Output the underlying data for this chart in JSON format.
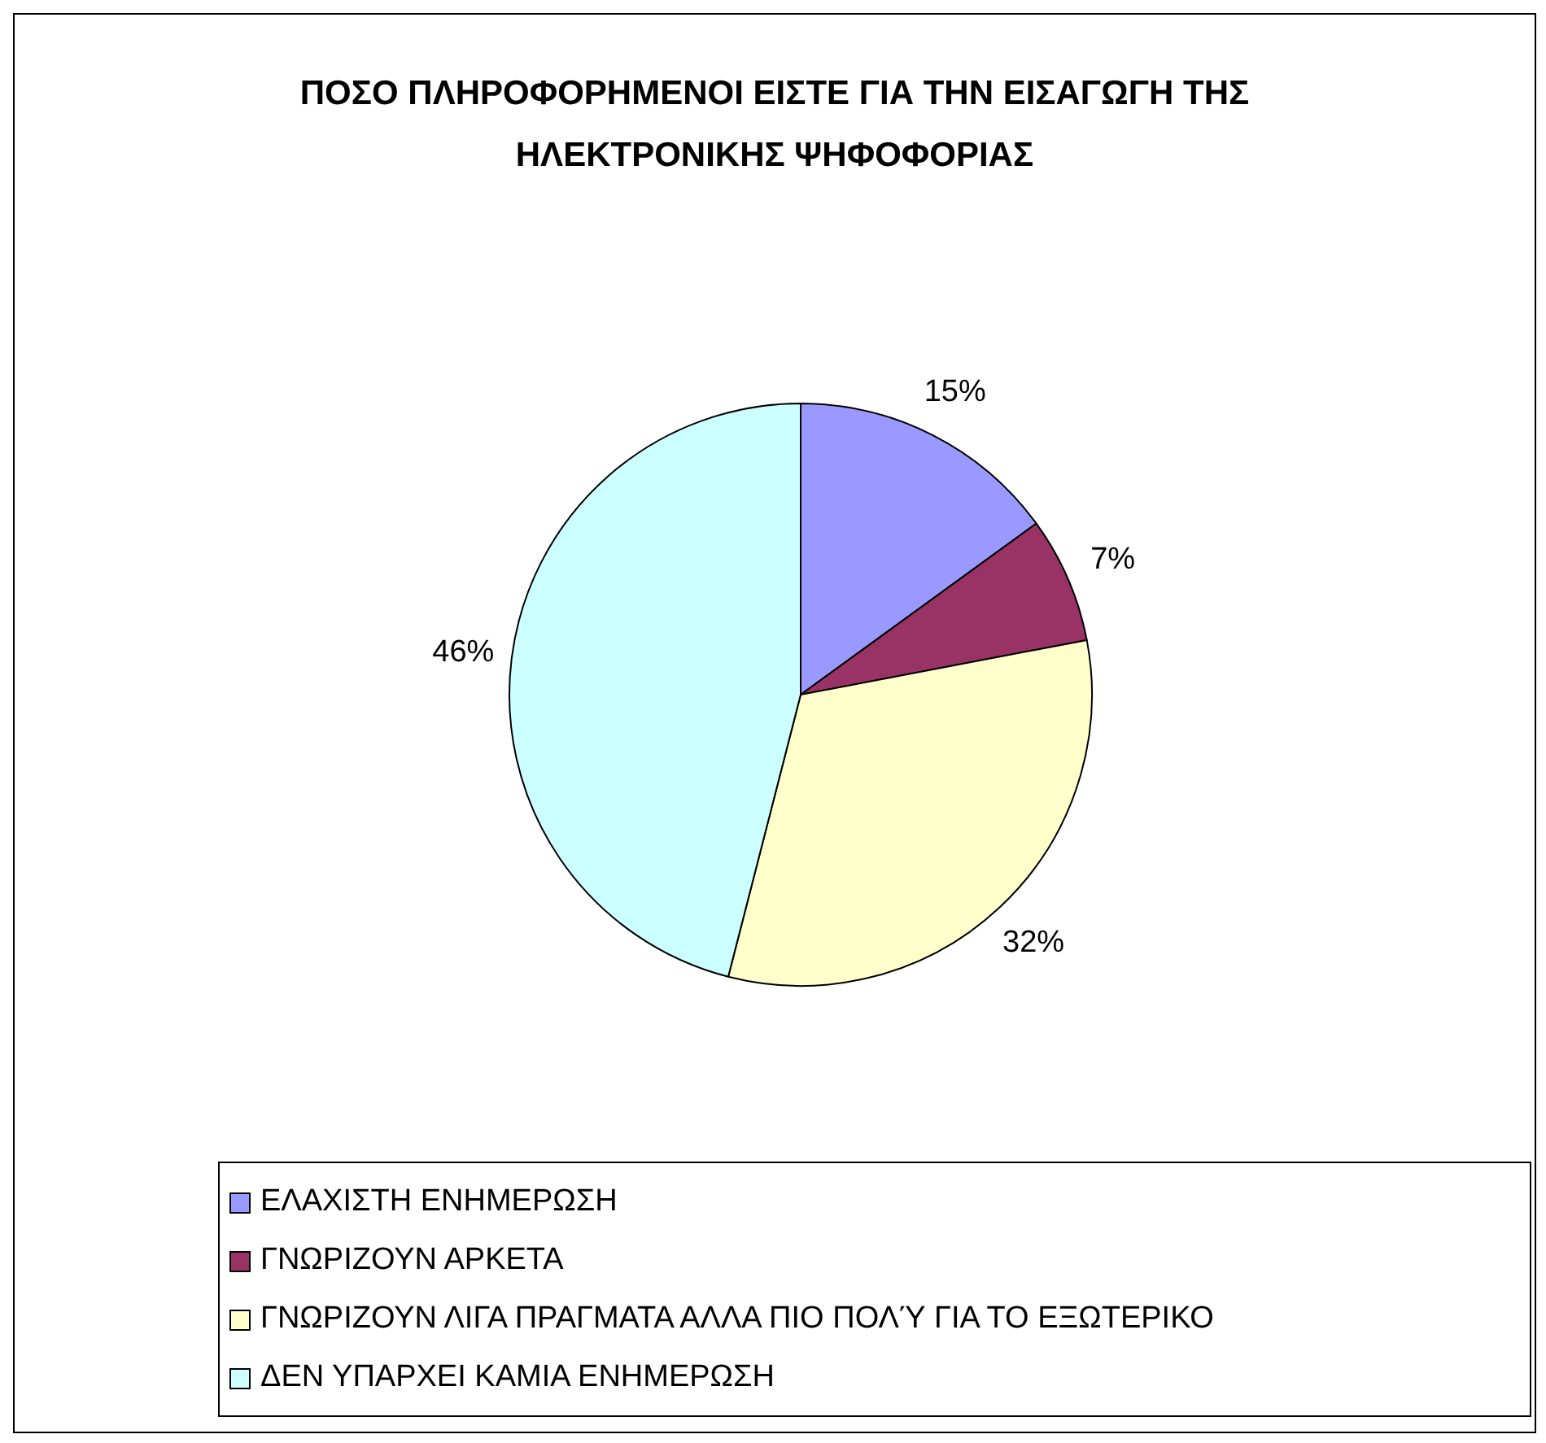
{
  "chart_data": {
    "type": "pie",
    "title": "ΠΟΣΟ ΠΛΗΡΟΦΟΡΗΜΕΝΟΙ ΕΙΣΤΕ ΓΙΑ ΤΗΝ ΕΙΣΑΓΩΓΗ ΤΗΣ ΗΛΕΚΤΡΟΝΙΚΗΣ ΨΗΦΟΦΟΡΙΑΣ",
    "categories": [
      "ΕΛΑΧΙΣΤΗ ΕΝΗΜΕΡΩΣΗ",
      "ΓΝΩΡΙΖΟΥΝ ΑΡΚΕΤΑ",
      "ΓΝΩΡΙΖΟΥΝ ΛΙΓΑ ΠΡΑΓΜΑΤΑ ΑΛΛΑ ΠΙΟ ΠΟΛΎ ΓΙΑ ΤΟ ΕΞΩΤΕΡΙΚΟ",
      "ΔΕΝ ΥΠΑΡΧΕΙ ΚΑΜΙΑ ΕΝΗΜΕΡΩΣΗ"
    ],
    "values": [
      15,
      7,
      32,
      46
    ],
    "colors": [
      "#9999ff",
      "#993366",
      "#ffffcc",
      "#ccffff"
    ],
    "value_labels": [
      "15%",
      "7%",
      "32%",
      "46%"
    ],
    "legend": "bottom"
  }
}
